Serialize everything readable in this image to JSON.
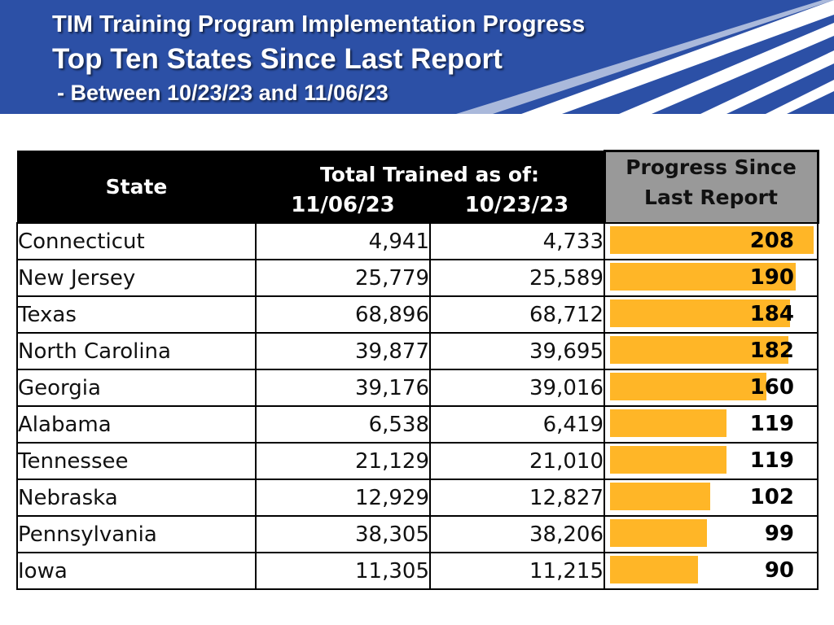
{
  "header": {
    "line1": "TIM Training Program Implementation Progress",
    "line2": "Top Ten States Since Last Report",
    "line3": "- Between 10/23/23 and 11/06/23",
    "banner_color": "#2c50a6"
  },
  "table": {
    "col_state": "State",
    "col_total": "Total Trained as of:",
    "col_date1": "11/06/23",
    "col_date2": "10/23/23",
    "col_progress": "Progress Since Last Report",
    "bar_color": "#ffb627",
    "bar_max": 208,
    "rows": [
      {
        "state": "Connecticut",
        "d1": "4,941",
        "d2": "4,733",
        "progress": "208",
        "value": 208
      },
      {
        "state": "New Jersey",
        "d1": "25,779",
        "d2": "25,589",
        "progress": "190",
        "value": 190
      },
      {
        "state": "Texas",
        "d1": "68,896",
        "d2": "68,712",
        "progress": "184",
        "value": 184
      },
      {
        "state": "North Carolina",
        "d1": "39,877",
        "d2": "39,695",
        "progress": "182",
        "value": 182
      },
      {
        "state": "Georgia",
        "d1": "39,176",
        "d2": "39,016",
        "progress": "160",
        "value": 160
      },
      {
        "state": "Alabama",
        "d1": "6,538",
        "d2": "6,419",
        "progress": "119",
        "value": 119
      },
      {
        "state": "Tennessee",
        "d1": "21,129",
        "d2": "21,010",
        "progress": "119",
        "value": 119
      },
      {
        "state": "Nebraska",
        "d1": "12,929",
        "d2": "12,827",
        "progress": "102",
        "value": 102
      },
      {
        "state": "Pennsylvania",
        "d1": "38,305",
        "d2": "38,206",
        "progress": "99",
        "value": 99
      },
      {
        "state": "Iowa",
        "d1": "11,305",
        "d2": "11,215",
        "progress": "90",
        "value": 90
      }
    ]
  }
}
